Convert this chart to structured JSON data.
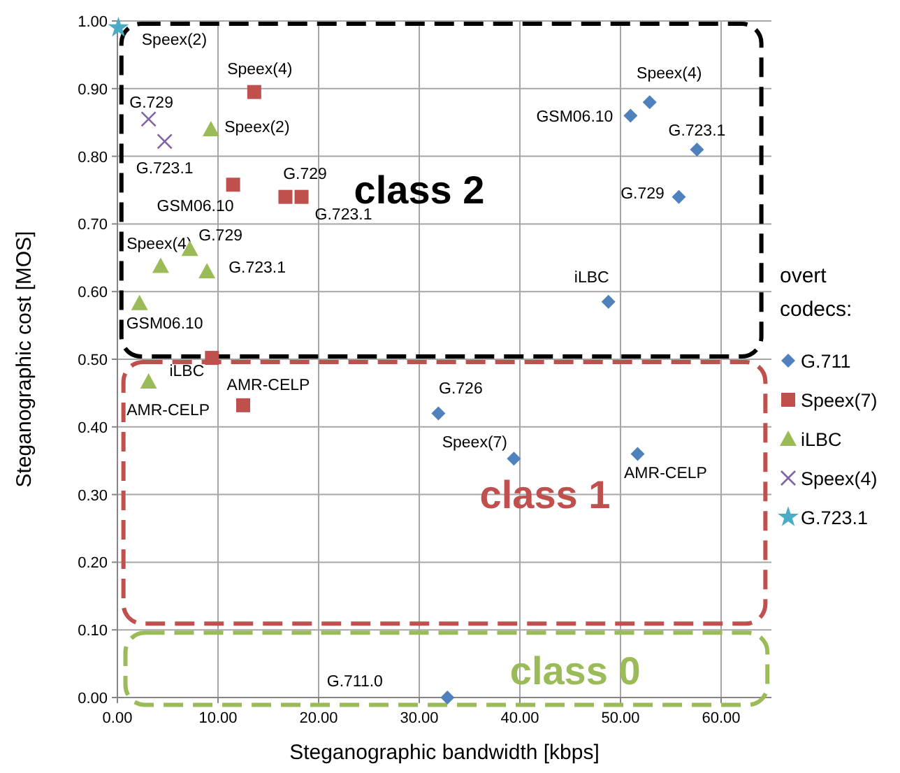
{
  "chart_data": {
    "type": "scatter",
    "xlabel": "Steganographic bandwidth [kbps]",
    "ylabel": "Steganographic cost [MOS]",
    "legend_title": "overt codecs:",
    "legend": "right",
    "grid": true,
    "xlim": [
      0,
      65
    ],
    "xticks": [
      {
        "value": 0,
        "label": "0.00"
      },
      {
        "value": 10,
        "label": "10.00"
      },
      {
        "value": 20,
        "label": "20.00"
      },
      {
        "value": 30,
        "label": "30.00"
      },
      {
        "value": 40,
        "label": "40.00"
      },
      {
        "value": 50,
        "label": "50.00"
      },
      {
        "value": 60,
        "label": "60.00"
      }
    ],
    "ylim": [
      0,
      1
    ],
    "yticks": [
      {
        "value": 0,
        "label": "0.00"
      },
      {
        "value": 0.1,
        "label": "0.10"
      },
      {
        "value": 0.2,
        "label": "0.20"
      },
      {
        "value": 0.3,
        "label": "0.30"
      },
      {
        "value": 0.4,
        "label": "0.40"
      },
      {
        "value": 0.5,
        "label": "0.50"
      },
      {
        "value": 0.6,
        "label": "0.60"
      },
      {
        "value": 0.7,
        "label": "0.70"
      },
      {
        "value": 0.8,
        "label": "0.80"
      },
      {
        "value": 0.9,
        "label": "0.90"
      },
      {
        "value": 1,
        "label": "1.00"
      }
    ],
    "series": [
      {
        "name": "G.711",
        "color": "#4f81bd",
        "marker": "diamond",
        "x": [
          51.0,
          52.9,
          57.6,
          55.8,
          48.8,
          31.9,
          39.4,
          51.7,
          32.8
        ],
        "values": [
          0.86,
          0.88,
          0.81,
          0.74,
          0.585,
          0.42,
          0.353,
          0.36,
          0.0
        ]
      },
      {
        "name": "Speex(7)",
        "color": "#c0504d",
        "marker": "square",
        "x": [
          13.6,
          11.5,
          16.7,
          18.3,
          9.4,
          12.5
        ],
        "values": [
          0.895,
          0.758,
          0.74,
          0.74,
          0.502,
          0.432
        ]
      },
      {
        "name": "iLBC",
        "color": "#9bbb59",
        "marker": "triangle",
        "x": [
          9.3,
          7.2,
          4.3,
          8.9,
          2.2,
          3.1
        ],
        "values": [
          0.84,
          0.663,
          0.638,
          0.63,
          0.583,
          0.467
        ]
      },
      {
        "name": "Speex(4)",
        "color": "#8064a2",
        "marker": "cross",
        "x": [
          3.1,
          4.7
        ],
        "values": [
          0.855,
          0.822
        ]
      },
      {
        "name": "G.723.1",
        "color": "#4bacc6",
        "marker": "star",
        "x": [
          0.1
        ],
        "values": [
          0.99
        ]
      }
    ],
    "annotations": [
      {
        "text": "Speex(2)",
        "x": 0.1,
        "y": 0.99
      },
      {
        "text": "Speex(4)",
        "x": 13.6,
        "y": 0.895
      },
      {
        "text": "G.729",
        "x": 3.1,
        "y": 0.855
      },
      {
        "text": "Speex(2)",
        "x": 9.3,
        "y": 0.84
      },
      {
        "text": "G.723.1",
        "x": 4.7,
        "y": 0.822
      },
      {
        "text": "G.729",
        "x": 16.7,
        "y": 0.74
      },
      {
        "text": "GSM06.10",
        "x": 11.5,
        "y": 0.758
      },
      {
        "text": "G.723.1",
        "x": 18.3,
        "y": 0.74
      },
      {
        "text": "Speex(4)",
        "x": 4.3,
        "y": 0.638
      },
      {
        "text": "G.729",
        "x": 7.2,
        "y": 0.663
      },
      {
        "text": "G.723.1",
        "x": 8.9,
        "y": 0.63
      },
      {
        "text": "GSM06.10",
        "x": 2.2,
        "y": 0.583
      },
      {
        "text": "iLBC",
        "x": 9.4,
        "y": 0.502
      },
      {
        "text": "AMR-CELP",
        "x": 12.5,
        "y": 0.432
      },
      {
        "text": "AMR-CELP",
        "x": 3.1,
        "y": 0.467
      },
      {
        "text": "G.726",
        "x": 31.9,
        "y": 0.42
      },
      {
        "text": "Speex(7)",
        "x": 39.4,
        "y": 0.353
      },
      {
        "text": "AMR-CELP",
        "x": 51.7,
        "y": 0.36
      },
      "G.711.0",
      {
        "text": "Speex(4)",
        "x": 52.9,
        "y": 0.88
      },
      {
        "text": "GSM06.10",
        "x": 51.0,
        "y": 0.86
      },
      {
        "text": "G.723.1",
        "x": 57.6,
        "y": 0.81
      },
      {
        "text": "G.729",
        "x": 55.8,
        "y": 0.74
      },
      {
        "text": "iLBC",
        "x": 48.8,
        "y": 0.585
      },
      "class 2",
      "class 1",
      "class 0"
    ]
  }
}
